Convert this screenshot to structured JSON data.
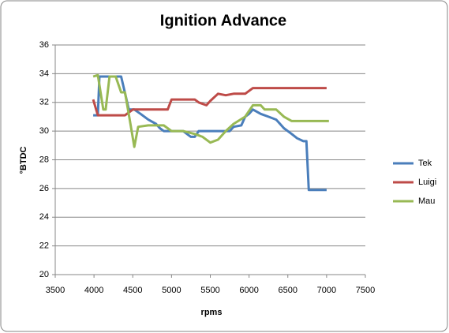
{
  "chart_data": {
    "type": "line",
    "title": "Ignition Advance",
    "x_label": "rpms",
    "y_label": "°BTDC",
    "xlim": [
      3500,
      7500
    ],
    "xticks": [
      3500,
      4000,
      4500,
      5000,
      5500,
      6000,
      6500,
      7000,
      7500
    ],
    "ylim": [
      20,
      36
    ],
    "yticks": [
      20,
      22,
      24,
      26,
      28,
      30,
      32,
      34,
      36
    ],
    "grid": true,
    "legend": "right",
    "series": [
      {
        "name": "Tek",
        "color": "#4a7ebb",
        "x": [
          3990,
          4050,
          4070,
          4350,
          4450,
          4520,
          4600,
          4700,
          4800,
          4850,
          4900,
          5150,
          5200,
          5250,
          5300,
          5350,
          5750,
          5800,
          5900,
          5950,
          6000,
          6050,
          6150,
          6250,
          6350,
          6400,
          6450,
          6550,
          6620,
          6700,
          6740,
          6770,
          7000
        ],
        "values": [
          31.1,
          31.1,
          33.8,
          33.8,
          31.5,
          31.5,
          31.2,
          30.8,
          30.5,
          30.2,
          30.0,
          30.0,
          29.8,
          29.6,
          29.6,
          30.0,
          30.0,
          30.3,
          30.4,
          31.0,
          31.2,
          31.5,
          31.2,
          31.0,
          30.8,
          30.5,
          30.2,
          29.8,
          29.5,
          29.3,
          29.3,
          25.9,
          25.9
        ]
      },
      {
        "name": "Luigi",
        "color": "#be4b48",
        "x": [
          3990,
          4050,
          4400,
          4450,
          4500,
          4950,
          5000,
          5300,
          5350,
          5450,
          5500,
          5600,
          5700,
          5800,
          5950,
          6050,
          7000
        ],
        "values": [
          32.2,
          31.1,
          31.1,
          31.3,
          31.5,
          31.5,
          32.2,
          32.2,
          32.0,
          31.8,
          32.1,
          32.6,
          32.5,
          32.6,
          32.6,
          33.0,
          33.0
        ]
      },
      {
        "name": "Mau",
        "color": "#98b954",
        "x": [
          3990,
          4050,
          4120,
          4150,
          4200,
          4280,
          4350,
          4400,
          4470,
          4520,
          4570,
          4700,
          4900,
          5000,
          5150,
          5300,
          5400,
          5500,
          5600,
          5700,
          5800,
          5950,
          6050,
          6150,
          6200,
          6350,
          6450,
          6550,
          7030
        ],
        "values": [
          33.8,
          33.9,
          31.5,
          31.5,
          33.8,
          33.8,
          32.7,
          32.7,
          30.5,
          28.9,
          30.3,
          30.4,
          30.4,
          30.0,
          30.0,
          29.8,
          29.6,
          29.2,
          29.4,
          30.0,
          30.5,
          31.0,
          31.8,
          31.8,
          31.5,
          31.5,
          31.0,
          30.7,
          30.7
        ]
      }
    ]
  }
}
